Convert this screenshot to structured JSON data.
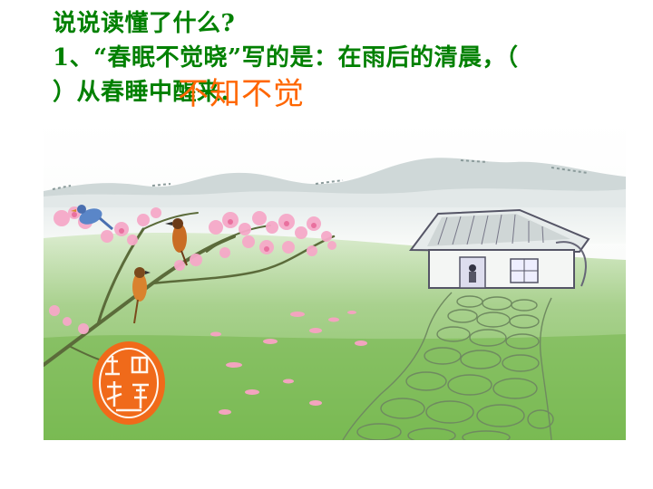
{
  "lesson": {
    "prompt": "说说读懂了什么?",
    "question_line_1": "1、“春眠不觉晓”写的是：在雨后的清晨，（",
    "question_line_2": "）从春睡中醒来.",
    "answer": "不知不觉"
  },
  "colors": {
    "text_green": "#008000",
    "answer_orange": "#ff6600"
  },
  "illustration": {
    "subject": "spring-morning-landscape",
    "elements": [
      "mountains",
      "cottage",
      "peach-blossom-branches",
      "birds",
      "stone-path",
      "red-seal"
    ]
  }
}
